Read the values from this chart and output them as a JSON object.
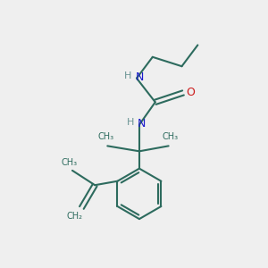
{
  "bg_color": "#efefef",
  "bond_color": "#2d6b5e",
  "N_color": "#1a1acc",
  "O_color": "#cc1a1a",
  "H_color": "#6a9494",
  "line_width": 1.5,
  "fig_size": [
    3.0,
    3.0
  ],
  "dpi": 100,
  "xlim": [
    0,
    10
  ],
  "ylim": [
    0,
    10
  ]
}
